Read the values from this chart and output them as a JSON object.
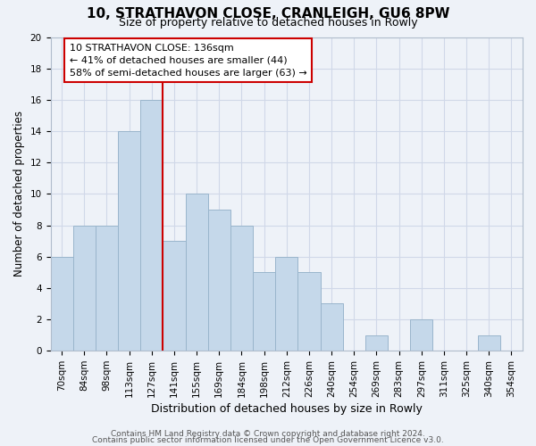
{
  "title1": "10, STRATHAVON CLOSE, CRANLEIGH, GU6 8PW",
  "title2": "Size of property relative to detached houses in Rowly",
  "xlabel": "Distribution of detached houses by size in Rowly",
  "ylabel": "Number of detached properties",
  "categories": [
    "70sqm",
    "84sqm",
    "98sqm",
    "113sqm",
    "127sqm",
    "141sqm",
    "155sqm",
    "169sqm",
    "184sqm",
    "198sqm",
    "212sqm",
    "226sqm",
    "240sqm",
    "254sqm",
    "269sqm",
    "283sqm",
    "297sqm",
    "311sqm",
    "325sqm",
    "340sqm",
    "354sqm"
  ],
  "values": [
    6,
    8,
    8,
    14,
    16,
    7,
    10,
    9,
    8,
    5,
    6,
    5,
    3,
    0,
    1,
    0,
    2,
    0,
    0,
    1,
    0
  ],
  "bar_color": "#c5d8ea",
  "bar_edge_color": "#9ab5cc",
  "marker_line_color": "#cc0000",
  "annotation_line1": "10 STRATHAVON CLOSE: 136sqm",
  "annotation_line2": "← 41% of detached houses are smaller (44)",
  "annotation_line3": "58% of semi-detached houses are larger (63) →",
  "annotation_box_color": "#ffffff",
  "annotation_box_edge": "#cc0000",
  "ylim": [
    0,
    20
  ],
  "yticks": [
    0,
    2,
    4,
    6,
    8,
    10,
    12,
    14,
    16,
    18,
    20
  ],
  "footer1": "Contains HM Land Registry data © Crown copyright and database right 2024.",
  "footer2": "Contains public sector information licensed under the Open Government Licence v3.0.",
  "grid_color": "#d0d8e8",
  "background_color": "#eef2f8",
  "title_fontsize": 11,
  "subtitle_fontsize": 9,
  "tick_fontsize": 7.5,
  "ylabel_fontsize": 8.5,
  "xlabel_fontsize": 9,
  "annotation_fontsize": 8,
  "footer_fontsize": 6.5
}
